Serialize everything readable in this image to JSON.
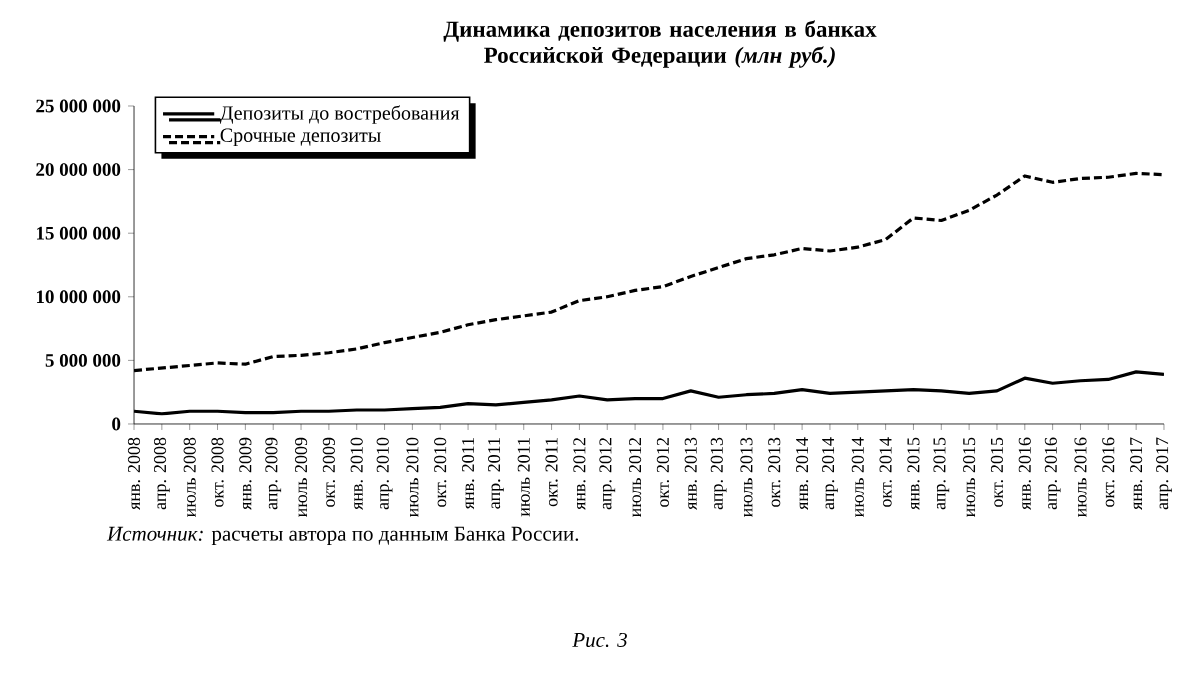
{
  "chart_data": {
    "type": "line",
    "title": "Динамика депозитов населения в банках Российской Федерации *(млн руб.)*",
    "categories": [
      "янв. 2008",
      "апр. 2008",
      "июль 2008",
      "окт. 2008",
      "янв. 2009",
      "апр. 2009",
      "июль 2009",
      "окт. 2009",
      "янв. 2010",
      "апр. 2010",
      "июль 2010",
      "окт. 2010",
      "янв. 2011",
      "апр. 2011",
      "июль 2011",
      "окт. 2011",
      "янв. 2012",
      "апр. 2012",
      "июль 2012",
      "окт. 2012",
      "янв. 2013",
      "апр. 2013",
      "июль 2013",
      "окт. 2013",
      "янв. 2014",
      "апр. 2014",
      "июль 2014",
      "окт. 2014",
      "янв. 2015",
      "апр. 2015",
      "июль 2015",
      "окт. 2015",
      "янв. 2016",
      "апр. 2016",
      "июль 2016",
      "окт. 2016",
      "янв. 2017",
      "апр. 2017"
    ],
    "series": [
      {
        "name": "Депозиты до востребования",
        "color": "#000000",
        "line_style": "solid",
        "values": [
          1000000,
          800000,
          1000000,
          1000000,
          900000,
          900000,
          1000000,
          1000000,
          1100000,
          1100000,
          1200000,
          1300000,
          1600000,
          1500000,
          1700000,
          1900000,
          2200000,
          1900000,
          2000000,
          2000000,
          2600000,
          2100000,
          2300000,
          2400000,
          2700000,
          2400000,
          2500000,
          2600000,
          2700000,
          2600000,
          2400000,
          2600000,
          3600000,
          3200000,
          3400000,
          3500000,
          4100000,
          3900000
        ]
      },
      {
        "name": "Срочные депозиты",
        "color": "#000000",
        "line_style": "dashed",
        "values": [
          4200000,
          4400000,
          4600000,
          4800000,
          4700000,
          5300000,
          5400000,
          5600000,
          5900000,
          6400000,
          6800000,
          7200000,
          7800000,
          8200000,
          8500000,
          8800000,
          9700000,
          10000000,
          10500000,
          10800000,
          11600000,
          12300000,
          13000000,
          13300000,
          13800000,
          13600000,
          13900000,
          14500000,
          16200000,
          16000000,
          16800000,
          18000000,
          19500000,
          19000000,
          19300000,
          19400000,
          19700000,
          19600000
        ]
      }
    ],
    "ylim": [
      0,
      25000000
    ],
    "yticks": [
      {
        "value": 0,
        "label": "0"
      },
      {
        "value": 5000000,
        "label": "5 000 000"
      },
      {
        "value": 10000000,
        "label": "10 000 000"
      },
      {
        "value": 15000000,
        "label": "15 000 000"
      },
      {
        "value": 20000000,
        "label": "20 000 000"
      },
      {
        "value": 25000000,
        "label": "25 000 000"
      }
    ],
    "legend": "top left",
    "grid": false,
    "annotations": [
      "*Источник:* расчеты автора по данным Банка России.",
      "*Рис. 3*"
    ]
  }
}
